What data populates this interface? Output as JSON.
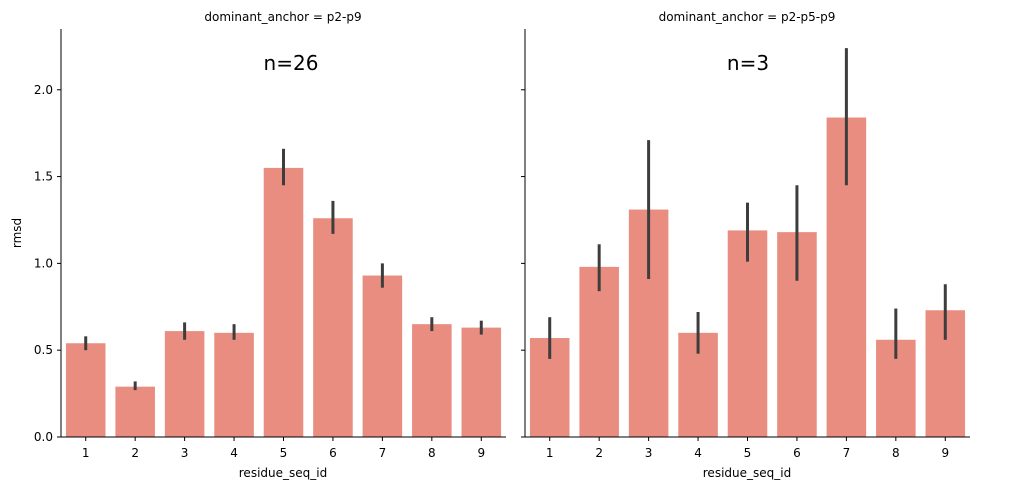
{
  "chart_data": {
    "type": "bar",
    "xlabel": "residue_seq_id",
    "ylabel": "rmsd",
    "ylim": [
      0,
      2.35
    ],
    "yticks": [
      "0.0",
      "0.5",
      "1.0",
      "1.5",
      "2.0"
    ],
    "yticks_values": [
      0,
      0.5,
      1.0,
      1.5,
      2.0
    ],
    "categories": [
      "1",
      "2",
      "3",
      "4",
      "5",
      "6",
      "7",
      "8",
      "9"
    ],
    "bar_color": "#e98d80",
    "errorbar_color": "#3d3d3d",
    "shared_y": true,
    "grid": false,
    "facets": [
      {
        "title": "dominant_anchor = p2-p9",
        "annotation": "n=26",
        "values": [
          0.54,
          0.29,
          0.61,
          0.6,
          1.55,
          1.26,
          0.93,
          0.65,
          0.63
        ],
        "err_low": [
          0.5,
          0.27,
          0.56,
          0.56,
          1.45,
          1.17,
          0.86,
          0.61,
          0.59
        ],
        "err_high": [
          0.58,
          0.32,
          0.66,
          0.65,
          1.66,
          1.36,
          1.0,
          0.69,
          0.67
        ]
      },
      {
        "title": "dominant_anchor = p2-p5-p9",
        "annotation": "n=3",
        "values": [
          0.57,
          0.98,
          1.31,
          0.6,
          1.19,
          1.18,
          1.84,
          0.56,
          0.73
        ],
        "err_low": [
          0.45,
          0.84,
          0.91,
          0.48,
          1.01,
          0.9,
          1.45,
          0.45,
          0.56
        ],
        "err_high": [
          0.69,
          1.11,
          1.71,
          0.72,
          1.35,
          1.45,
          2.24,
          0.74,
          0.88
        ]
      }
    ]
  }
}
